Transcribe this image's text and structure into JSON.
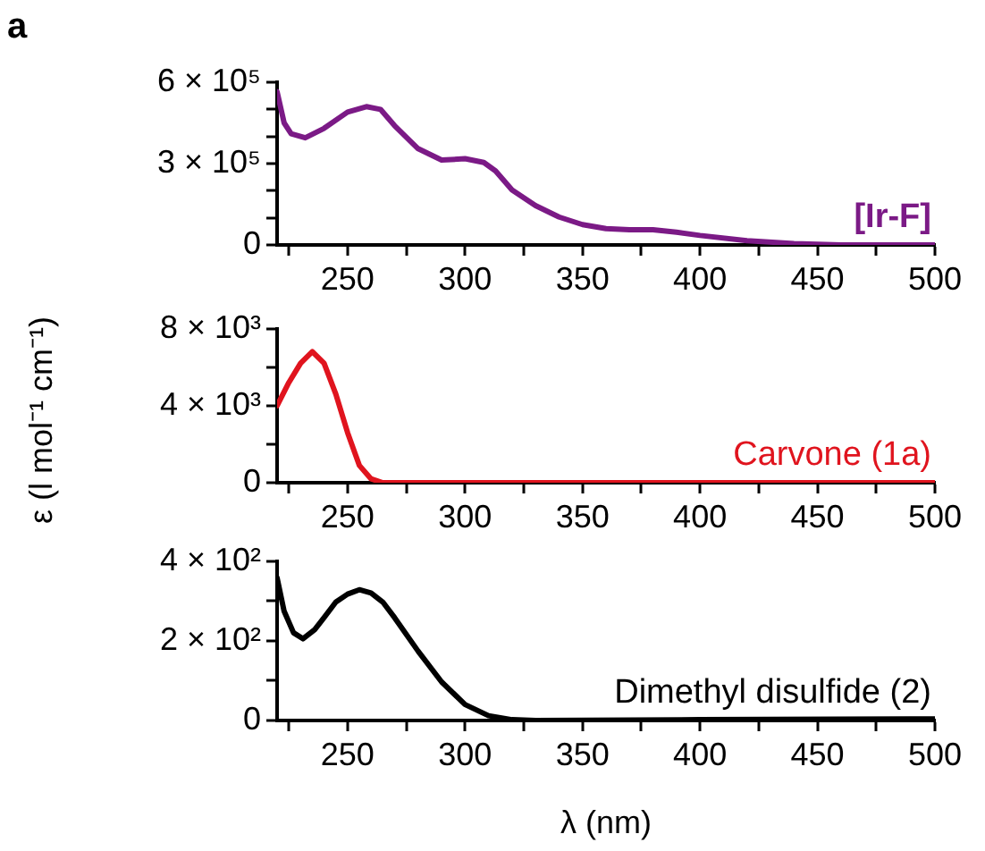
{
  "chart_data": [
    {
      "type": "line",
      "title": "a",
      "legend": false,
      "grid": false,
      "marker": "none",
      "x": [
        220,
        223,
        226,
        232,
        240,
        250,
        258,
        264,
        270,
        280,
        290,
        300,
        308,
        313,
        320,
        330,
        340,
        350,
        360,
        370,
        380,
        390,
        400,
        420,
        440,
        460,
        500
      ],
      "series": [
        {
          "name": "[Ir-F]",
          "color": "#7b1a86",
          "values": [
            565000,
            450000,
            410000,
            395000,
            430000,
            490000,
            510000,
            500000,
            440000,
            355000,
            313000,
            318000,
            304000,
            273000,
            203000,
            145000,
            103000,
            75000,
            60000,
            56000,
            56000,
            47000,
            35000,
            16000,
            5000,
            0,
            0
          ]
        }
      ],
      "xlim": [
        220,
        500
      ],
      "xticks": [
        {
          "value": 225,
          "label": null
        },
        250,
        {
          "value": 275,
          "label": null
        },
        300,
        {
          "value": 325,
          "label": null
        },
        350,
        {
          "value": 375,
          "label": null
        },
        400,
        {
          "value": 425,
          "label": null
        },
        450,
        {
          "value": 475,
          "label": null
        },
        500
      ],
      "ylim": [
        0,
        600000
      ],
      "yticks": [
        {
          "value": 0,
          "label": "0"
        },
        {
          "value": 100000,
          "label": null
        },
        {
          "value": 200000,
          "label": null
        },
        {
          "value": 300000,
          "label": "3 × 10⁵"
        },
        {
          "value": 400000,
          "label": null
        },
        {
          "value": 500000,
          "label": null
        },
        {
          "value": 600000,
          "label": "6 × 10⁵"
        }
      ]
    },
    {
      "type": "line",
      "ylabel": "ε (l mol⁻¹ cm⁻¹)",
      "legend": false,
      "grid": false,
      "marker": "none",
      "x": [
        220,
        225,
        230,
        235,
        240,
        245,
        250,
        255,
        260,
        265,
        280,
        500
      ],
      "series": [
        {
          "name": "Carvone (1a)",
          "color": "#e0141e",
          "values": [
            4000,
            5200,
            6200,
            6800,
            6200,
            4600,
            2600,
            900,
            200,
            0,
            0,
            0
          ]
        }
      ],
      "xlim": [
        220,
        500
      ],
      "xticks": [
        {
          "value": 225,
          "label": null
        },
        250,
        {
          "value": 275,
          "label": null
        },
        300,
        {
          "value": 325,
          "label": null
        },
        350,
        {
          "value": 375,
          "label": null
        },
        400,
        {
          "value": 425,
          "label": null
        },
        450,
        {
          "value": 475,
          "label": null
        },
        500
      ],
      "ylim": [
        0,
        8000
      ],
      "yticks": [
        {
          "value": 0,
          "label": "0"
        },
        {
          "value": 2000,
          "label": null
        },
        {
          "value": 4000,
          "label": "4 × 10³"
        },
        {
          "value": 6000,
          "label": null
        },
        {
          "value": 8000,
          "label": "8 × 10³"
        }
      ]
    },
    {
      "type": "line",
      "xlabel": "λ (nm)",
      "legend": false,
      "grid": false,
      "marker": "none",
      "x": [
        220,
        223,
        227,
        231,
        236,
        240,
        245,
        250,
        255,
        260,
        265,
        270,
        280,
        290,
        300,
        310,
        320,
        330,
        400,
        500
      ],
      "series": [
        {
          "name": "Dimethyl disulfide (2)",
          "color": "#000000",
          "values": [
            358,
            274,
            220,
            205,
            228,
            258,
            297,
            317,
            328,
            320,
            297,
            258,
            174,
            97,
            40,
            12,
            2,
            0,
            2,
            4
          ]
        }
      ],
      "xlim": [
        220,
        500
      ],
      "xticks": [
        {
          "value": 225,
          "label": null
        },
        250,
        {
          "value": 275,
          "label": null
        },
        300,
        {
          "value": 325,
          "label": null
        },
        350,
        {
          "value": 375,
          "label": null
        },
        400,
        {
          "value": 425,
          "label": null
        },
        450,
        {
          "value": 475,
          "label": null
        },
        500
      ],
      "ylim": [
        0,
        400
      ],
      "yticks": [
        {
          "value": 0,
          "label": "0"
        },
        {
          "value": 100,
          "label": null
        },
        {
          "value": 200,
          "label": "2 × 10²"
        },
        {
          "value": 300,
          "label": null
        },
        {
          "value": 400,
          "label": "4 × 10²"
        }
      ]
    }
  ]
}
